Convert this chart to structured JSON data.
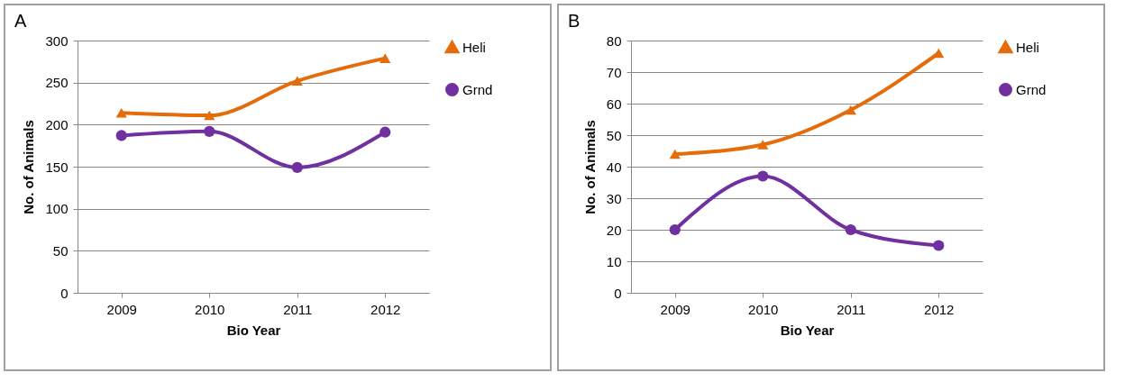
{
  "chart_data": [
    {
      "type": "line",
      "annotations": [
        "A"
      ],
      "categories": [
        "2009",
        "2010",
        "2011",
        "2012"
      ],
      "xlabel": "Bio Year",
      "ylabel": "No. of Animals",
      "ylim": [
        0,
        300
      ],
      "yticks": [
        0,
        50,
        100,
        150,
        200,
        250,
        300
      ],
      "grid": "y",
      "legend": "right",
      "series": [
        {
          "name": "Heli",
          "color": "#e46c0a",
          "marker": "triangle",
          "values": [
            214,
            211,
            252,
            279
          ]
        },
        {
          "name": "Grnd",
          "color": "#7030a0",
          "marker": "circle",
          "values": [
            187,
            192,
            149,
            191
          ]
        }
      ]
    },
    {
      "type": "line",
      "annotations": [
        "B"
      ],
      "categories": [
        "2009",
        "2010",
        "2011",
        "2012"
      ],
      "xlabel": "Bio Year",
      "ylabel": "No. of Animals",
      "ylim": [
        0,
        80
      ],
      "yticks": [
        0,
        10,
        20,
        30,
        40,
        50,
        60,
        70,
        80
      ],
      "grid": "y",
      "legend": "right",
      "series": [
        {
          "name": "Heli",
          "color": "#e46c0a",
          "marker": "triangle",
          "values": [
            44,
            47,
            58,
            76
          ]
        },
        {
          "name": "Grnd",
          "color": "#7030a0",
          "marker": "circle",
          "values": [
            20,
            37,
            20,
            15
          ]
        }
      ]
    }
  ]
}
